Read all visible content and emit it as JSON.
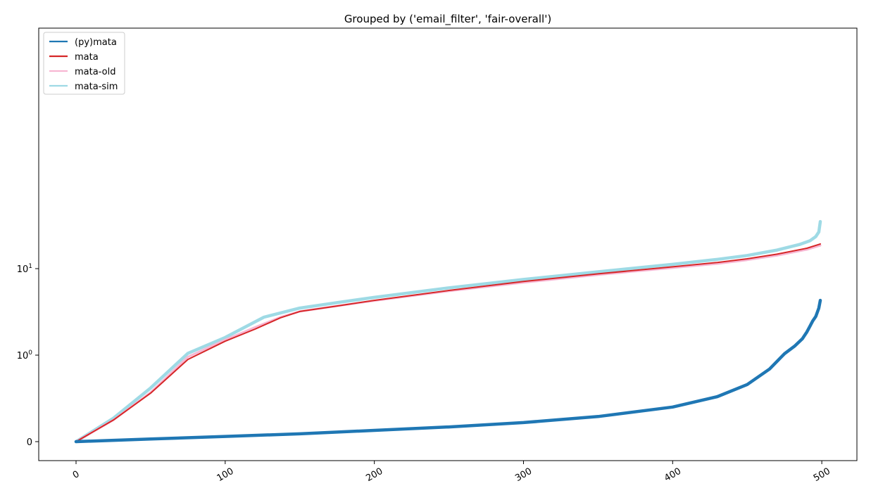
{
  "chart_data": {
    "type": "line",
    "title": "Grouped by ('email_filter', 'fair-overall')",
    "xlabel": "",
    "ylabel": "",
    "xlim": [
      -25,
      525
    ],
    "yscale": "symlog",
    "xticks": [
      0,
      100,
      200,
      300,
      400,
      500
    ],
    "xtick_labels": [
      "0",
      "100",
      "200",
      "300",
      "400",
      "500"
    ],
    "yticks": [
      {
        "value": 0,
        "base": "0",
        "exp": ""
      },
      {
        "value": 1,
        "base": "10",
        "exp": "0"
      },
      {
        "value": 10,
        "base": "10",
        "exp": "1"
      }
    ],
    "legend_position": "upper left",
    "grid": false,
    "series": [
      {
        "name": "(py)mata",
        "color": "#1f77b4",
        "x": [
          0,
          50,
          100,
          150,
          200,
          250,
          300,
          350,
          400,
          430,
          450,
          465,
          475,
          482,
          487,
          490,
          492,
          494,
          496,
          498,
          499
        ],
        "y": [
          0,
          0.03,
          0.06,
          0.09,
          0.13,
          0.17,
          0.22,
          0.29,
          0.4,
          0.52,
          0.66,
          0.84,
          1.04,
          1.28,
          1.55,
          1.85,
          2.15,
          2.5,
          2.8,
          3.5,
          4.3
        ]
      },
      {
        "name": "mata",
        "color": "#d62728",
        "x": [
          0,
          25,
          50,
          75,
          100,
          120,
          137,
          150,
          175,
          200,
          250,
          300,
          350,
          400,
          430,
          450,
          470,
          490,
          499
        ],
        "y": [
          0,
          0.25,
          0.56,
          0.95,
          1.45,
          2.0,
          2.7,
          3.2,
          3.7,
          4.3,
          5.6,
          7.1,
          8.7,
          10.5,
          11.8,
          13.0,
          14.7,
          17.2,
          19.3
        ]
      },
      {
        "name": "mata-old",
        "color": "#f7b6d2",
        "x": [
          0,
          25,
          50,
          75,
          100,
          120,
          137,
          150,
          175,
          200,
          250,
          300,
          350,
          400,
          430,
          450,
          470,
          490,
          499
        ],
        "y": [
          0,
          0.25,
          0.57,
          0.98,
          1.5,
          2.1,
          2.75,
          3.2,
          3.7,
          4.25,
          5.5,
          6.9,
          8.5,
          10.2,
          11.4,
          12.6,
          14.2,
          16.6,
          18.5
        ]
      },
      {
        "name": "mata-sim",
        "color": "#9edae5",
        "x": [
          0,
          25,
          50,
          75,
          100,
          126,
          150,
          175,
          200,
          250,
          300,
          350,
          400,
          430,
          450,
          470,
          485,
          492,
          496,
          498,
          499
        ],
        "y": [
          0,
          0.27,
          0.62,
          1.05,
          1.6,
          2.75,
          3.5,
          4.05,
          4.65,
          6.0,
          7.5,
          9.2,
          11.2,
          12.8,
          14.2,
          16.4,
          19.0,
          21.0,
          23.5,
          26.5,
          35.0
        ]
      }
    ]
  }
}
